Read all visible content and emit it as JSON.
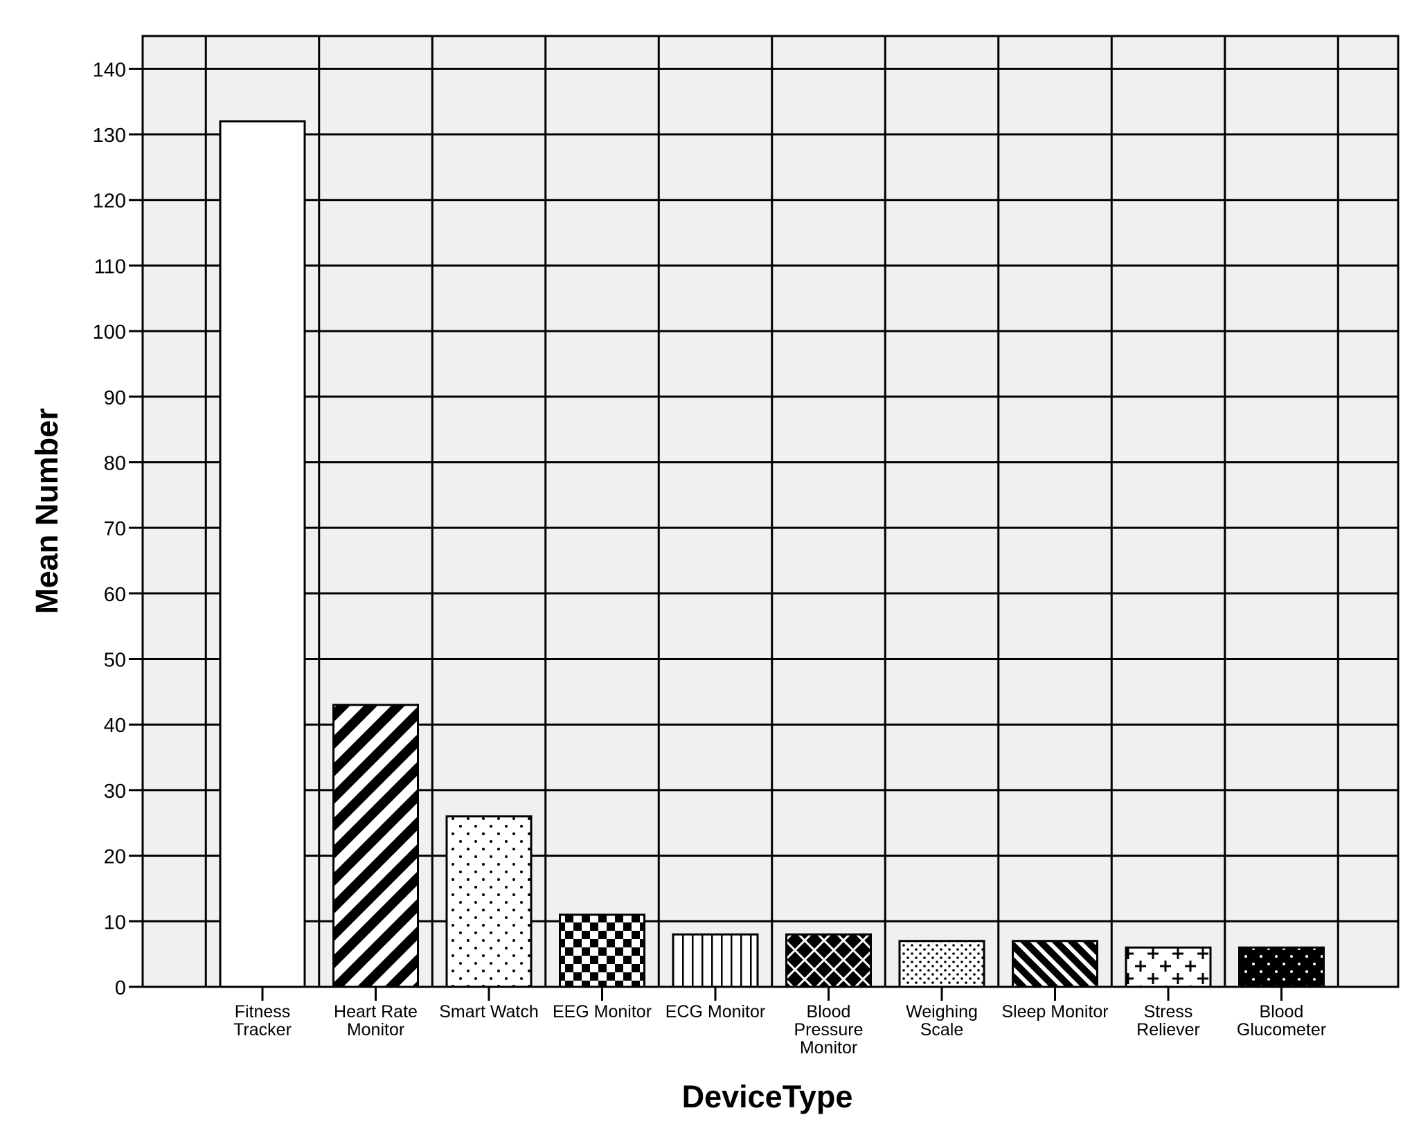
{
  "chart_data": {
    "type": "bar",
    "xlabel": "DeviceType",
    "ylabel": "Mean Number",
    "ylim": [
      0,
      145
    ],
    "yticks": [
      0,
      10,
      20,
      30,
      40,
      50,
      60,
      70,
      80,
      90,
      100,
      110,
      120,
      130,
      140
    ],
    "grid": true,
    "background_color": "#f0f0f0",
    "categories": [
      "Fitness Tracker",
      "Heart Rate Monitor",
      "Smart Watch",
      "EEG Monitor",
      "ECG Monitor",
      "Blood Pressure Monitor",
      "Weighing Scale",
      "Sleep Monitor",
      "Stress Reliever",
      "Blood Glucometer"
    ],
    "category_label_lines": [
      [
        "Fitness",
        "Tracker"
      ],
      [
        "Heart Rate",
        "Monitor"
      ],
      [
        "Smart Watch"
      ],
      [
        "EEG Monitor"
      ],
      [
        "ECG Monitor"
      ],
      [
        "Blood",
        "Pressure",
        "Monitor"
      ],
      [
        "Weighing",
        "Scale"
      ],
      [
        "Sleep Monitor"
      ],
      [
        "Stress",
        "Reliever"
      ],
      [
        "Blood",
        "Glucometer"
      ]
    ],
    "values": [
      132,
      43,
      26,
      11,
      8,
      8,
      7,
      7,
      6,
      6
    ],
    "patterns": [
      "solid-white",
      "diagonal-stripes",
      "sparse-dots",
      "checkerboard",
      "vertical-lines",
      "crosshatch",
      "fine-dots",
      "diagonal-stripes-reverse",
      "plus-signs",
      "black-dotted"
    ]
  }
}
